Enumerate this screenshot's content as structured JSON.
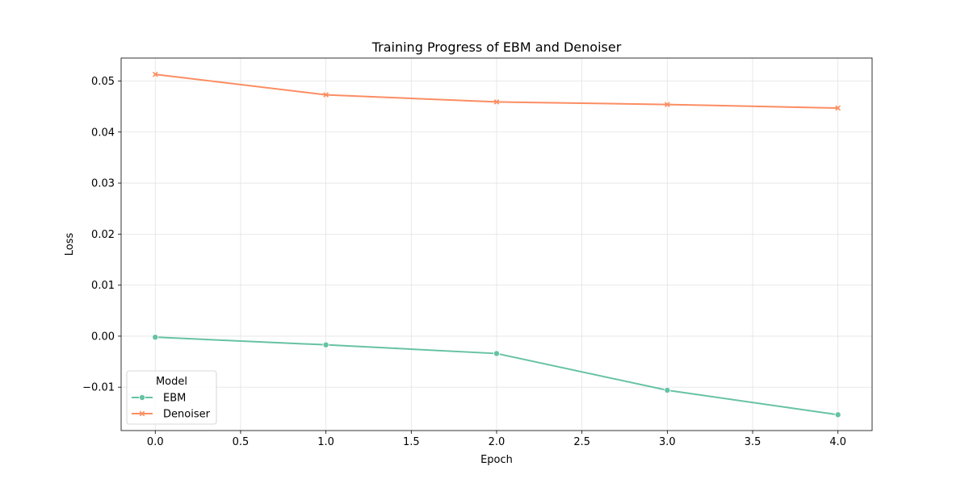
{
  "chart_data": {
    "type": "line",
    "title": "Training Progress of EBM and Denoiser",
    "xlabel": "Epoch",
    "ylabel": "Loss",
    "x": [
      0,
      1,
      2,
      3,
      4
    ],
    "xlim": [
      -0.2,
      4.2
    ],
    "ylim": [
      -0.0185,
      0.0545
    ],
    "xticks": [
      "0.0",
      "0.5",
      "1.0",
      "1.5",
      "2.0",
      "2.5",
      "3.0",
      "3.5",
      "4.0"
    ],
    "yticks": [
      "−0.01",
      "0.00",
      "0.01",
      "0.02",
      "0.03",
      "0.04",
      "0.05"
    ],
    "grid": true,
    "legend": {
      "title": "Model",
      "placement": "lower-left"
    },
    "series": [
      {
        "name": "EBM",
        "values": [
          -0.0002,
          -0.0017,
          -0.0034,
          -0.0106,
          -0.0154
        ],
        "color": "#66c2a5",
        "marker": "circle"
      },
      {
        "name": "Denoiser",
        "values": [
          0.0513,
          0.0473,
          0.0459,
          0.0454,
          0.0447
        ],
        "color": "#fc8d62",
        "marker": "x"
      }
    ]
  }
}
